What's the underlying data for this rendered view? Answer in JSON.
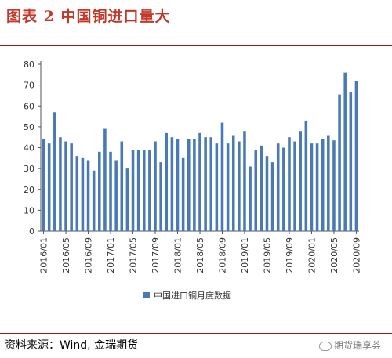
{
  "figure": {
    "title": "图表 2  中国铜进口量大",
    "source": "资料来源：Wind, 金瑞期货",
    "watermark": "期货瑞享荟"
  },
  "chart_data": {
    "type": "bar",
    "title": "",
    "xlabel": "",
    "ylabel": "",
    "ylim": [
      0,
      80
    ],
    "yticks": [
      0,
      10,
      20,
      30,
      40,
      50,
      60,
      70,
      80
    ],
    "grid": false,
    "legend_position": "bottom",
    "bar_color": "#4a7ab5",
    "categories": [
      "2016/01",
      "2016/02",
      "2016/03",
      "2016/04",
      "2016/05",
      "2016/06",
      "2016/07",
      "2016/08",
      "2016/09",
      "2016/10",
      "2016/11",
      "2016/12",
      "2017/01",
      "2017/02",
      "2017/03",
      "2017/04",
      "2017/05",
      "2017/06",
      "2017/07",
      "2017/08",
      "2017/09",
      "2017/10",
      "2017/11",
      "2017/12",
      "2018/01",
      "2018/02",
      "2018/03",
      "2018/04",
      "2018/05",
      "2018/06",
      "2018/07",
      "2018/08",
      "2018/09",
      "2018/10",
      "2018/11",
      "2018/12",
      "2019/01",
      "2019/02",
      "2019/03",
      "2019/04",
      "2019/05",
      "2019/06",
      "2019/07",
      "2019/08",
      "2019/09",
      "2019/10",
      "2019/11",
      "2019/12",
      "2020/01",
      "2020/02",
      "2020/03",
      "2020/04",
      "2020/05",
      "2020/06",
      "2020/07",
      "2020/08",
      "2020/09"
    ],
    "tick_labels": [
      "2016/01",
      "2016/05",
      "2016/09",
      "2017/01",
      "2017/05",
      "2017/09",
      "2018/01",
      "2018/05",
      "2018/09",
      "2019/01",
      "2019/05",
      "2019/09",
      "2020/01",
      "2020/05",
      "2020/09"
    ],
    "series": [
      {
        "name": "中国进口铜月度数据",
        "values": [
          44,
          42,
          57,
          45,
          43,
          42,
          36,
          35,
          34,
          29,
          38,
          49,
          38,
          34,
          43,
          30,
          39,
          39,
          39,
          39,
          43,
          33,
          47,
          45,
          44,
          35,
          44,
          44,
          47,
          45,
          45,
          42,
          52,
          42,
          46,
          43,
          48,
          31,
          39,
          41,
          36,
          33,
          42,
          40,
          45,
          43,
          48,
          53,
          42,
          42,
          44,
          46,
          43.5,
          65.5,
          76,
          66.5,
          72
        ]
      }
    ]
  }
}
